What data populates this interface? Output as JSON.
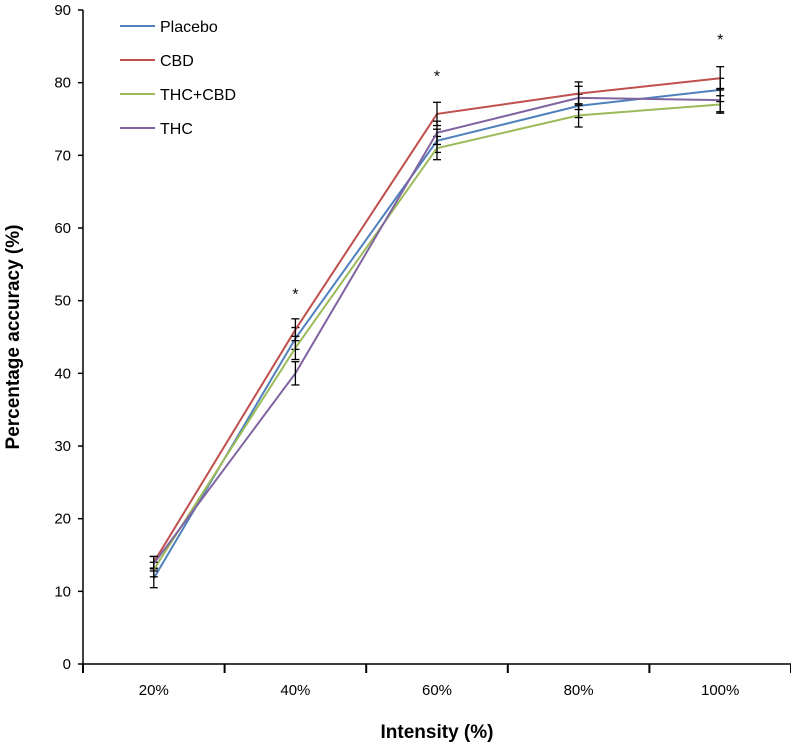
{
  "chart_data": {
    "type": "line",
    "title": "",
    "xlabel": "Intensity (%)",
    "ylabel": "Percentage accuracy (%)",
    "categories": [
      "20%",
      "40%",
      "60%",
      "80%",
      "100%"
    ],
    "ylim": [
      0,
      90
    ],
    "yticks": [
      0,
      10,
      20,
      30,
      40,
      50,
      60,
      70,
      80,
      90
    ],
    "grid": false,
    "legend_position": "top-left",
    "series": [
      {
        "name": "Placebo",
        "color": "#4f81bd",
        "values": [
          11.8,
          44.8,
          72.0,
          76.8,
          79.0
        ],
        "error": [
          1.3,
          1.5,
          1.6,
          1.6,
          1.6
        ]
      },
      {
        "name": "CBD",
        "color": "#c0504d",
        "values": [
          14.0,
          46.0,
          75.7,
          78.5,
          80.6
        ],
        "error": [
          0.8,
          1.5,
          1.6,
          1.6,
          1.6
        ]
      },
      {
        "name": "THC+CBD",
        "color": "#9bbb59",
        "values": [
          13.0,
          43.5,
          71.0,
          75.5,
          77.0
        ],
        "error": [
          1.0,
          1.6,
          1.6,
          1.6,
          1.2
        ]
      },
      {
        "name": "THC",
        "color": "#8064a2",
        "values": [
          13.8,
          40.0,
          73.1,
          77.9,
          77.6
        ],
        "error": [
          1.0,
          1.6,
          1.6,
          1.6,
          1.6
        ]
      }
    ],
    "annotations": [
      {
        "text": "*",
        "category": "40%",
        "y": 51
      },
      {
        "text": "*",
        "category": "60%",
        "y": 81
      },
      {
        "text": "*",
        "category": "100%",
        "y": 86
      }
    ]
  }
}
